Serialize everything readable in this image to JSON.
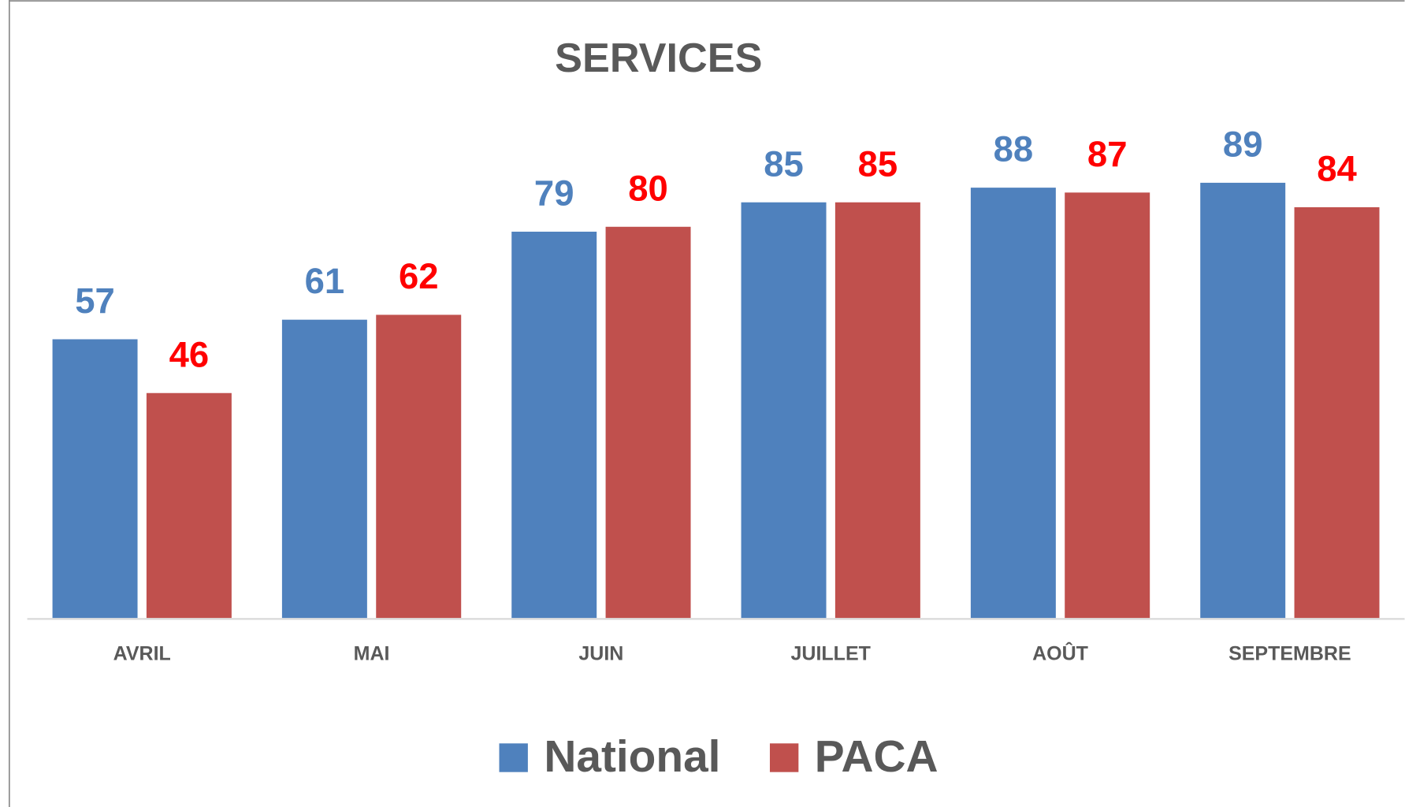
{
  "chart_data": {
    "type": "bar",
    "title": "SERVICES",
    "categories": [
      "AVRIL",
      "MAI",
      "JUIN",
      "JUILLET",
      "AOÛT",
      "SEPTEMBRE"
    ],
    "series": [
      {
        "name": "National",
        "color": "#4f81bd",
        "label_color": "#4f81bd",
        "values": [
          57,
          61,
          79,
          85,
          88,
          89
        ]
      },
      {
        "name": "PACA",
        "color": "#c0504d",
        "label_color": "#ff0000",
        "values": [
          46,
          62,
          80,
          85,
          87,
          84
        ]
      }
    ],
    "ylim": [
      0,
      100
    ],
    "grid": false,
    "legend": "bottom"
  }
}
